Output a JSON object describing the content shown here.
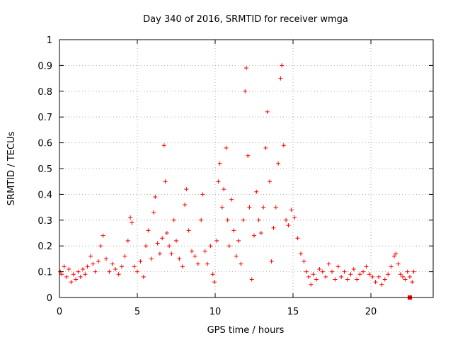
{
  "chart_data": {
    "type": "scatter",
    "title": "Day 340 of 2016, SRMTID for receiver wmga",
    "xlabel": "GPS time / hours",
    "ylabel": "SRMTID / TECUs",
    "xlim": [
      0,
      24
    ],
    "ylim": [
      0,
      1
    ],
    "x_ticks": [
      0,
      5,
      10,
      15,
      20
    ],
    "x_tick_labels": [
      "0",
      "5",
      "10",
      "15",
      "20"
    ],
    "y_ticks": [
      0,
      0.1,
      0.2,
      0.3,
      0.4,
      0.5,
      0.6,
      0.7,
      0.8,
      0.9,
      1
    ],
    "y_tick_labels": [
      "0",
      "0.1",
      "0.2",
      "0.3",
      "0.4",
      "0.5",
      "0.6",
      "0.7",
      "0.8",
      "0.9",
      "1"
    ],
    "grid": true,
    "marker": "plus",
    "color": "#ff0000",
    "series": [
      {
        "name": "SRMTID",
        "points": [
          [
            0.05,
            0.1
          ],
          [
            0.15,
            0.09
          ],
          [
            0.3,
            0.12
          ],
          [
            0.45,
            0.08
          ],
          [
            0.6,
            0.11
          ],
          [
            0.75,
            0.06
          ],
          [
            0.9,
            0.09
          ],
          [
            1.05,
            0.07
          ],
          [
            1.2,
            0.1
          ],
          [
            1.35,
            0.08
          ],
          [
            1.5,
            0.11
          ],
          [
            1.65,
            0.09
          ],
          [
            1.8,
            0.12
          ],
          [
            2.0,
            0.16
          ],
          [
            2.15,
            0.13
          ],
          [
            2.3,
            0.1
          ],
          [
            2.5,
            0.14
          ],
          [
            2.65,
            0.2
          ],
          [
            2.8,
            0.24
          ],
          [
            3.0,
            0.15
          ],
          [
            3.2,
            0.1
          ],
          [
            3.4,
            0.13
          ],
          [
            3.6,
            0.11
          ],
          [
            3.8,
            0.09
          ],
          [
            4.0,
            0.12
          ],
          [
            4.2,
            0.16
          ],
          [
            4.4,
            0.22
          ],
          [
            4.55,
            0.31
          ],
          [
            4.65,
            0.29
          ],
          [
            4.8,
            0.12
          ],
          [
            5.0,
            0.1
          ],
          [
            5.2,
            0.14
          ],
          [
            5.4,
            0.08
          ],
          [
            5.55,
            0.2
          ],
          [
            5.7,
            0.26
          ],
          [
            5.9,
            0.15
          ],
          [
            6.05,
            0.33
          ],
          [
            6.15,
            0.39
          ],
          [
            6.3,
            0.21
          ],
          [
            6.45,
            0.17
          ],
          [
            6.6,
            0.23
          ],
          [
            6.72,
            0.59
          ],
          [
            6.8,
            0.45
          ],
          [
            6.9,
            0.25
          ],
          [
            7.05,
            0.2
          ],
          [
            7.2,
            0.17
          ],
          [
            7.35,
            0.3
          ],
          [
            7.5,
            0.22
          ],
          [
            7.7,
            0.15
          ],
          [
            7.9,
            0.12
          ],
          [
            8.05,
            0.36
          ],
          [
            8.15,
            0.42
          ],
          [
            8.3,
            0.26
          ],
          [
            8.5,
            0.18
          ],
          [
            8.7,
            0.16
          ],
          [
            8.9,
            0.13
          ],
          [
            9.1,
            0.3
          ],
          [
            9.2,
            0.4
          ],
          [
            9.35,
            0.18
          ],
          [
            9.5,
            0.13
          ],
          [
            9.7,
            0.2
          ],
          [
            9.85,
            0.09
          ],
          [
            9.95,
            0.06
          ],
          [
            10.1,
            0.22
          ],
          [
            10.2,
            0.45
          ],
          [
            10.3,
            0.52
          ],
          [
            10.45,
            0.35
          ],
          [
            10.55,
            0.42
          ],
          [
            10.7,
            0.58
          ],
          [
            10.8,
            0.3
          ],
          [
            10.9,
            0.2
          ],
          [
            11.05,
            0.38
          ],
          [
            11.2,
            0.26
          ],
          [
            11.35,
            0.16
          ],
          [
            11.5,
            0.22
          ],
          [
            11.65,
            0.13
          ],
          [
            11.8,
            0.3
          ],
          [
            11.92,
            0.8
          ],
          [
            12.0,
            0.89
          ],
          [
            12.1,
            0.55
          ],
          [
            12.2,
            0.35
          ],
          [
            12.35,
            0.07
          ],
          [
            12.5,
            0.24
          ],
          [
            12.65,
            0.41
          ],
          [
            12.8,
            0.3
          ],
          [
            12.95,
            0.25
          ],
          [
            13.1,
            0.35
          ],
          [
            13.25,
            0.58
          ],
          [
            13.35,
            0.72
          ],
          [
            13.5,
            0.45
          ],
          [
            13.62,
            0.14
          ],
          [
            13.75,
            0.27
          ],
          [
            13.9,
            0.35
          ],
          [
            14.05,
            0.52
          ],
          [
            14.2,
            0.85
          ],
          [
            14.28,
            0.9
          ],
          [
            14.4,
            0.59
          ],
          [
            14.55,
            0.3
          ],
          [
            14.7,
            0.28
          ],
          [
            14.9,
            0.34
          ],
          [
            15.1,
            0.31
          ],
          [
            15.3,
            0.23
          ],
          [
            15.5,
            0.17
          ],
          [
            15.7,
            0.14
          ],
          [
            15.85,
            0.1
          ],
          [
            16.0,
            0.08
          ],
          [
            16.15,
            0.05
          ],
          [
            16.3,
            0.09
          ],
          [
            16.5,
            0.07
          ],
          [
            16.7,
            0.11
          ],
          [
            16.9,
            0.1
          ],
          [
            17.1,
            0.08
          ],
          [
            17.3,
            0.13
          ],
          [
            17.5,
            0.1
          ],
          [
            17.7,
            0.07
          ],
          [
            17.9,
            0.12
          ],
          [
            18.1,
            0.08
          ],
          [
            18.3,
            0.1
          ],
          [
            18.5,
            0.07
          ],
          [
            18.7,
            0.09
          ],
          [
            18.9,
            0.11
          ],
          [
            19.1,
            0.07
          ],
          [
            19.3,
            0.09
          ],
          [
            19.5,
            0.1
          ],
          [
            19.7,
            0.12
          ],
          [
            19.9,
            0.09
          ],
          [
            20.1,
            0.08
          ],
          [
            20.3,
            0.06
          ],
          [
            20.5,
            0.08
          ],
          [
            20.7,
            0.05
          ],
          [
            20.9,
            0.07
          ],
          [
            21.1,
            0.09
          ],
          [
            21.3,
            0.12
          ],
          [
            21.5,
            0.16
          ],
          [
            21.6,
            0.17
          ],
          [
            21.75,
            0.13
          ],
          [
            21.9,
            0.09
          ],
          [
            22.05,
            0.08
          ],
          [
            22.2,
            0.07
          ],
          [
            22.35,
            0.1
          ],
          [
            22.5,
            0.08
          ],
          [
            22.65,
            0.06
          ],
          [
            22.75,
            0.1
          ]
        ]
      }
    ],
    "special_point": {
      "x": 22.5,
      "y": 0.0,
      "marker": "square"
    }
  }
}
